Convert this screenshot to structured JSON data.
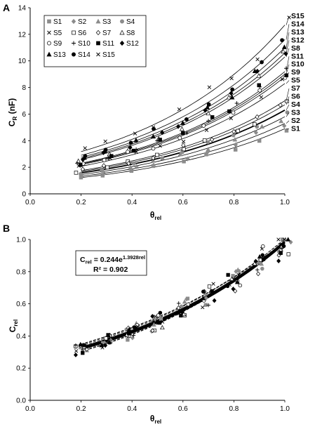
{
  "chart_data": [
    {
      "type": "scatter",
      "panel_label": "A",
      "xlabel": "θrel",
      "ylabel": "CR (nF)",
      "xlim": [
        0.0,
        1.0
      ],
      "ylim": [
        0,
        14
      ],
      "x_ticks": [
        "0.0",
        "0.2",
        "0.4",
        "0.6",
        "0.8",
        "1.0"
      ],
      "y_ticks": [
        "0",
        "2",
        "4",
        "6",
        "8",
        "10",
        "12",
        "14"
      ],
      "grid": false,
      "legend_position": "top-left",
      "series": [
        {
          "name": "S1",
          "marker": "square-gray",
          "end_value": 4.9
        },
        {
          "name": "S2",
          "marker": "diamond-gray",
          "end_value": 5.3
        },
        {
          "name": "S3",
          "marker": "triangle-gray",
          "end_value": 5.8
        },
        {
          "name": "S4",
          "marker": "circle-gray",
          "end_value": 6.3
        },
        {
          "name": "S5",
          "marker": "x",
          "end_value": 8.3
        },
        {
          "name": "S6",
          "marker": "square-open",
          "end_value": 6.7
        },
        {
          "name": "S7",
          "marker": "diamond-open",
          "end_value": 7.0
        },
        {
          "name": "S8",
          "marker": "triangle-open",
          "end_value": 10.3
        },
        {
          "name": "S9",
          "marker": "circle-open",
          "end_value": 8.8
        },
        {
          "name": "S10",
          "marker": "plus",
          "end_value": 9.0
        },
        {
          "name": "S11",
          "marker": "square-black",
          "end_value": 9.2
        },
        {
          "name": "S12",
          "marker": "diamond-black",
          "end_value": 10.6
        },
        {
          "name": "S13",
          "marker": "triangle-black",
          "end_value": 11.0
        },
        {
          "name": "S14",
          "marker": "circle-black",
          "end_value": 11.6
        },
        {
          "name": "S15",
          "marker": "x",
          "end_value": 12.7
        }
      ],
      "right_labels": [
        "S15",
        "S14",
        "S13",
        "S12",
        "S8",
        "S11",
        "S10",
        "S9",
        "S5",
        "S7",
        "S6",
        "S4",
        "S3",
        "S2",
        "S1"
      ],
      "fit_x_range": [
        0.2,
        1.0
      ],
      "fit_ratio_end_to_start": 4.0
    },
    {
      "type": "scatter",
      "panel_label": "B",
      "xlabel": "θrel",
      "ylabel": "Crel",
      "xlim": [
        0.0,
        1.0
      ],
      "ylim": [
        0.0,
        1.0
      ],
      "x_ticks": [
        "0.0",
        "0.2",
        "0.4",
        "0.6",
        "0.8",
        "1.0"
      ],
      "y_ticks": [
        "0.0",
        "0.2",
        "0.4",
        "0.6",
        "0.8",
        "1.0"
      ],
      "grid": false,
      "equation": "Crel = 0.244e1.3928rel",
      "equation_lhs": "C",
      "equation_lhs_sub": "rel",
      "equation_rhs": " = 0.244e",
      "equation_exp": "1.3928rel",
      "r_squared": "R² = 0.902",
      "fit": {
        "a": 0.244,
        "b": 1.3928,
        "x_range": [
          0.2,
          1.0
        ]
      }
    }
  ]
}
